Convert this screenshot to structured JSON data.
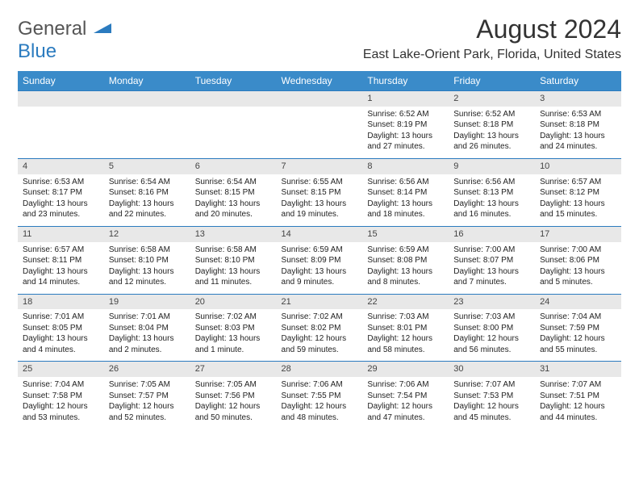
{
  "logo": {
    "text1": "General",
    "text2": "Blue"
  },
  "title": "August 2024",
  "location": "East Lake-Orient Park, Florida, United States",
  "day_headers": [
    "Sunday",
    "Monday",
    "Tuesday",
    "Wednesday",
    "Thursday",
    "Friday",
    "Saturday"
  ],
  "colors": {
    "header_bg": "#3a8bc9",
    "daynum_bg": "#e8e8e8",
    "row_border": "#2b7bbf",
    "text": "#222222"
  },
  "weeks": [
    [
      null,
      null,
      null,
      null,
      {
        "n": "1",
        "sunrise": "6:52 AM",
        "sunset": "8:19 PM",
        "daylight": "13 hours and 27 minutes."
      },
      {
        "n": "2",
        "sunrise": "6:52 AM",
        "sunset": "8:18 PM",
        "daylight": "13 hours and 26 minutes."
      },
      {
        "n": "3",
        "sunrise": "6:53 AM",
        "sunset": "8:18 PM",
        "daylight": "13 hours and 24 minutes."
      }
    ],
    [
      {
        "n": "4",
        "sunrise": "6:53 AM",
        "sunset": "8:17 PM",
        "daylight": "13 hours and 23 minutes."
      },
      {
        "n": "5",
        "sunrise": "6:54 AM",
        "sunset": "8:16 PM",
        "daylight": "13 hours and 22 minutes."
      },
      {
        "n": "6",
        "sunrise": "6:54 AM",
        "sunset": "8:15 PM",
        "daylight": "13 hours and 20 minutes."
      },
      {
        "n": "7",
        "sunrise": "6:55 AM",
        "sunset": "8:15 PM",
        "daylight": "13 hours and 19 minutes."
      },
      {
        "n": "8",
        "sunrise": "6:56 AM",
        "sunset": "8:14 PM",
        "daylight": "13 hours and 18 minutes."
      },
      {
        "n": "9",
        "sunrise": "6:56 AM",
        "sunset": "8:13 PM",
        "daylight": "13 hours and 16 minutes."
      },
      {
        "n": "10",
        "sunrise": "6:57 AM",
        "sunset": "8:12 PM",
        "daylight": "13 hours and 15 minutes."
      }
    ],
    [
      {
        "n": "11",
        "sunrise": "6:57 AM",
        "sunset": "8:11 PM",
        "daylight": "13 hours and 14 minutes."
      },
      {
        "n": "12",
        "sunrise": "6:58 AM",
        "sunset": "8:10 PM",
        "daylight": "13 hours and 12 minutes."
      },
      {
        "n": "13",
        "sunrise": "6:58 AM",
        "sunset": "8:10 PM",
        "daylight": "13 hours and 11 minutes."
      },
      {
        "n": "14",
        "sunrise": "6:59 AM",
        "sunset": "8:09 PM",
        "daylight": "13 hours and 9 minutes."
      },
      {
        "n": "15",
        "sunrise": "6:59 AM",
        "sunset": "8:08 PM",
        "daylight": "13 hours and 8 minutes."
      },
      {
        "n": "16",
        "sunrise": "7:00 AM",
        "sunset": "8:07 PM",
        "daylight": "13 hours and 7 minutes."
      },
      {
        "n": "17",
        "sunrise": "7:00 AM",
        "sunset": "8:06 PM",
        "daylight": "13 hours and 5 minutes."
      }
    ],
    [
      {
        "n": "18",
        "sunrise": "7:01 AM",
        "sunset": "8:05 PM",
        "daylight": "13 hours and 4 minutes."
      },
      {
        "n": "19",
        "sunrise": "7:01 AM",
        "sunset": "8:04 PM",
        "daylight": "13 hours and 2 minutes."
      },
      {
        "n": "20",
        "sunrise": "7:02 AM",
        "sunset": "8:03 PM",
        "daylight": "13 hours and 1 minute."
      },
      {
        "n": "21",
        "sunrise": "7:02 AM",
        "sunset": "8:02 PM",
        "daylight": "12 hours and 59 minutes."
      },
      {
        "n": "22",
        "sunrise": "7:03 AM",
        "sunset": "8:01 PM",
        "daylight": "12 hours and 58 minutes."
      },
      {
        "n": "23",
        "sunrise": "7:03 AM",
        "sunset": "8:00 PM",
        "daylight": "12 hours and 56 minutes."
      },
      {
        "n": "24",
        "sunrise": "7:04 AM",
        "sunset": "7:59 PM",
        "daylight": "12 hours and 55 minutes."
      }
    ],
    [
      {
        "n": "25",
        "sunrise": "7:04 AM",
        "sunset": "7:58 PM",
        "daylight": "12 hours and 53 minutes."
      },
      {
        "n": "26",
        "sunrise": "7:05 AM",
        "sunset": "7:57 PM",
        "daylight": "12 hours and 52 minutes."
      },
      {
        "n": "27",
        "sunrise": "7:05 AM",
        "sunset": "7:56 PM",
        "daylight": "12 hours and 50 minutes."
      },
      {
        "n": "28",
        "sunrise": "7:06 AM",
        "sunset": "7:55 PM",
        "daylight": "12 hours and 48 minutes."
      },
      {
        "n": "29",
        "sunrise": "7:06 AM",
        "sunset": "7:54 PM",
        "daylight": "12 hours and 47 minutes."
      },
      {
        "n": "30",
        "sunrise": "7:07 AM",
        "sunset": "7:53 PM",
        "daylight": "12 hours and 45 minutes."
      },
      {
        "n": "31",
        "sunrise": "7:07 AM",
        "sunset": "7:51 PM",
        "daylight": "12 hours and 44 minutes."
      }
    ]
  ],
  "labels": {
    "sunrise": "Sunrise:",
    "sunset": "Sunset:",
    "daylight": "Daylight:"
  }
}
